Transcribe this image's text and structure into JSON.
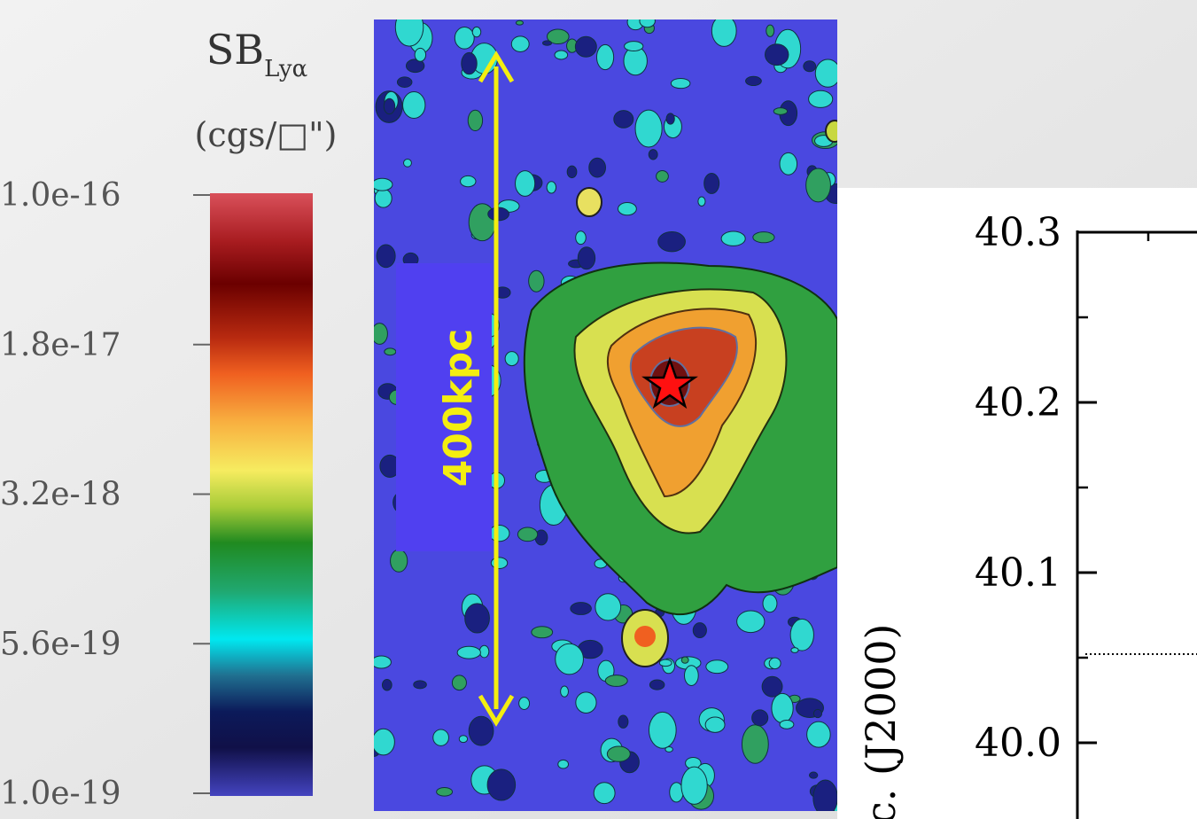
{
  "colorbar": {
    "title": "SB",
    "subscript": "Lyα",
    "unit": "(cgs/□\")",
    "labels": [
      "1.0e-16",
      "1.8e-17",
      "3.2e-18",
      "5.6e-19",
      "1.0e-19"
    ]
  },
  "map": {
    "scale_label": "400kpc"
  },
  "inset": {
    "ytick_labels": [
      "40.3",
      "40.2",
      "40.1",
      "40.0"
    ],
    "ylabel": "c. (J2000)"
  }
}
